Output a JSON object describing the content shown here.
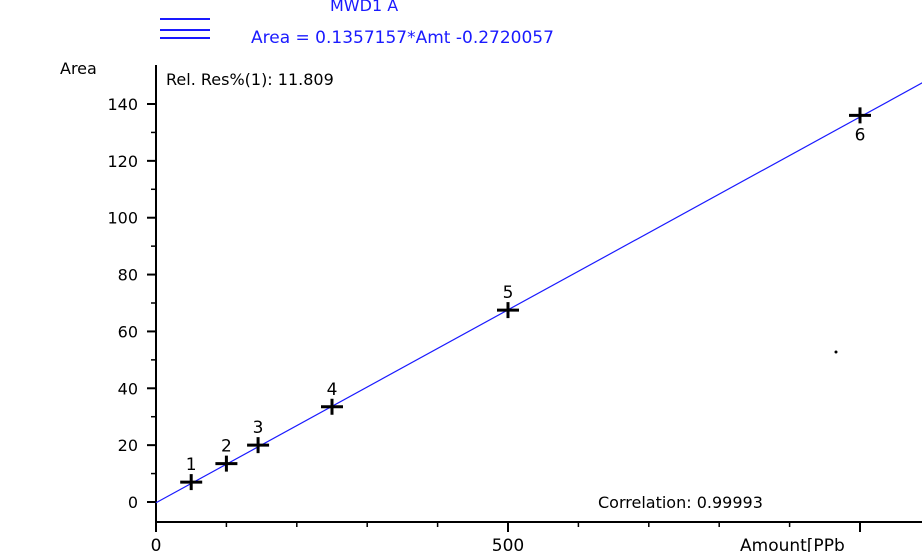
{
  "legend": {
    "top_text": "MWD1 A",
    "formula": "Area = 0.1357157*Amt -0.2720057"
  },
  "annotations": {
    "rel_res": "Rel. Res%(1): 11.809",
    "correlation": "Correlation: 0.99993"
  },
  "colors": {
    "fit_line": "#1a1aff",
    "points": "#000000",
    "axis": "#000000"
  },
  "chart_data": {
    "type": "scatter",
    "ylabel": "Area",
    "xlabel": "Amount[PPb",
    "xlim": [
      0,
      1100
    ],
    "ylim": [
      -8,
      150
    ],
    "x_ticks": [
      0,
      500,
      1000
    ],
    "x_tick_labels": [
      "0",
      "500",
      ""
    ],
    "y_ticks": [
      0,
      20,
      40,
      60,
      80,
      100,
      120,
      140
    ],
    "y_tick_labels": [
      "0",
      "20",
      "40",
      "60",
      "80",
      "100",
      "120",
      "140"
    ],
    "points": [
      {
        "label": "1",
        "x": 50,
        "y": 7
      },
      {
        "label": "2",
        "x": 100,
        "y": 13.5
      },
      {
        "label": "3",
        "x": 145,
        "y": 20
      },
      {
        "label": "4",
        "x": 250,
        "y": 33.5
      },
      {
        "label": "5",
        "x": 500,
        "y": 67.5
      },
      {
        "label": "6",
        "x": 1000,
        "y": 136
      }
    ],
    "fit": {
      "slope": 0.1357157,
      "intercept": -0.2720057
    }
  }
}
